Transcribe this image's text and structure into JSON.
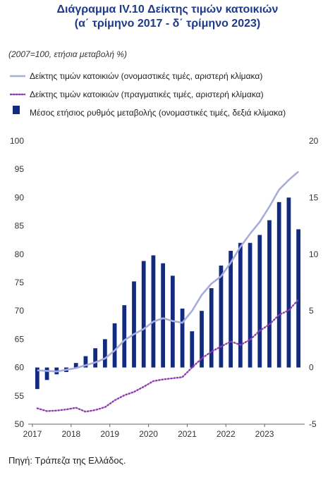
{
  "title_line1": "Διάγραμμα IV.10 Δείκτης τιμών κατοικιών",
  "title_line2": "(α΄ τρίμηνο 2017 - δ΄ τρίμηνο 2023)",
  "subtitle": "(2007=100, ετήσια μεταβολή %)",
  "source": "Πηγή: Τράπεζα της Ελλάδος.",
  "colors": {
    "nominal_line": "#a7acdc",
    "real_line": "#8e3fb0",
    "bars": "#132b7f",
    "title": "#1d3a8a"
  },
  "chart_data": {
    "type": "bar+line",
    "x_labels": [
      "2017",
      "2018",
      "2019",
      "2020",
      "2021",
      "2022",
      "2023"
    ],
    "quarters": [
      "2017Q1",
      "2017Q2",
      "2017Q3",
      "2017Q4",
      "2018Q1",
      "2018Q2",
      "2018Q3",
      "2018Q4",
      "2019Q1",
      "2019Q2",
      "2019Q3",
      "2019Q4",
      "2020Q1",
      "2020Q2",
      "2020Q3",
      "2020Q4",
      "2021Q1",
      "2021Q2",
      "2021Q3",
      "2021Q4",
      "2022Q1",
      "2022Q2",
      "2022Q3",
      "2022Q4",
      "2023Q1",
      "2023Q2",
      "2023Q3",
      "2023Q4"
    ],
    "left_axis": {
      "min": 50,
      "max": 100,
      "ticks": [
        50,
        55,
        60,
        65,
        70,
        75,
        80,
        85,
        90,
        95,
        100
      ]
    },
    "right_axis": {
      "min": -5,
      "max": 20,
      "ticks": [
        -5,
        0,
        5,
        10,
        15,
        20
      ]
    },
    "series": [
      {
        "name": "Δείκτης τιμών κατοικιών (ονομαστικές τιμές, αριστερή κλίμακα)",
        "axis": "left",
        "style": "solid-line",
        "values": [
          59.5,
          59.4,
          59.3,
          59.6,
          59.9,
          60.4,
          60.9,
          61.6,
          63.0,
          64.8,
          65.9,
          66.8,
          68.1,
          68.7,
          68.2,
          67.9,
          70.0,
          72.8,
          74.8,
          76.1,
          78.5,
          81.3,
          83.6,
          85.7,
          88.4,
          91.4,
          93.1,
          94.6
        ]
      },
      {
        "name": "Δείκτης τιμών κατοικιών (πραγματικές τιμές, αριστερή κλίμακα)",
        "axis": "left",
        "style": "dotted-line",
        "values": [
          52.8,
          52.3,
          52.4,
          52.6,
          52.9,
          52.2,
          52.5,
          53.0,
          54.2,
          55.1,
          55.7,
          56.6,
          57.6,
          57.9,
          58.1,
          58.3,
          60.0,
          61.6,
          62.8,
          63.7,
          64.6,
          64.0,
          64.9,
          66.5,
          67.6,
          69.3,
          70.1,
          72.0
        ]
      },
      {
        "name": "Μέσος ετήσιος ρυθμός μεταβολής (ονομαστικές τιμές, δεξιά κλίμακα)",
        "axis": "right",
        "style": "bar",
        "values": [
          -1.9,
          -1.1,
          -0.6,
          -0.4,
          0.4,
          1.0,
          1.7,
          2.5,
          3.9,
          5.5,
          7.6,
          9.4,
          9.9,
          9.2,
          8.1,
          5.2,
          3.2,
          5.0,
          7.0,
          9.0,
          10.3,
          11.0,
          11.0,
          11.7,
          13.0,
          14.6,
          15.0,
          12.2
        ]
      }
    ],
    "legend_position": "top",
    "grid": false
  }
}
